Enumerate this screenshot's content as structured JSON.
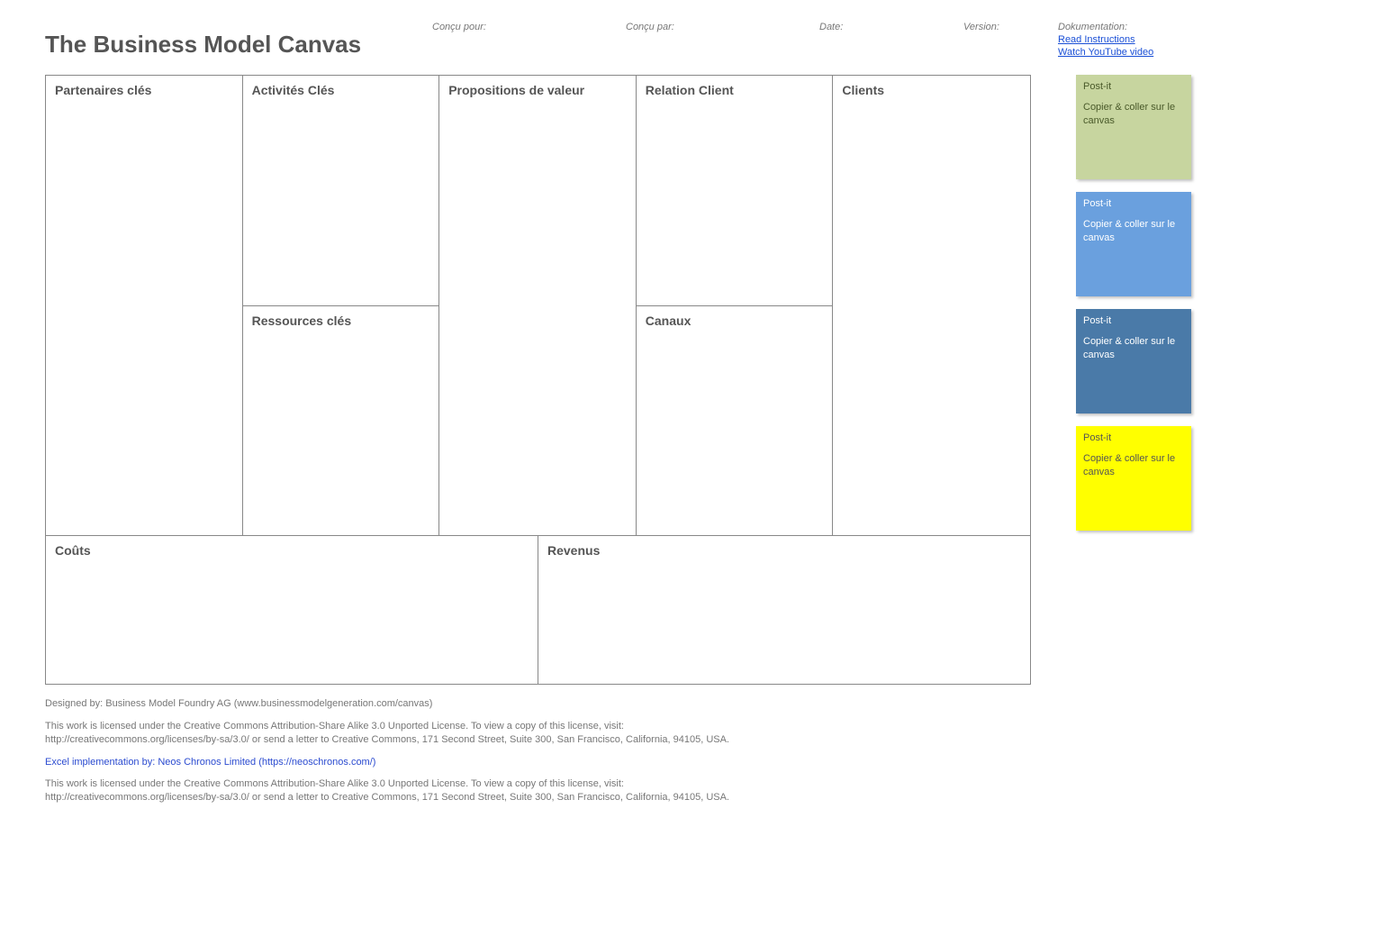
{
  "title": "The Business Model Canvas",
  "header": {
    "designed_for_label": "Conçu pour:",
    "designed_by_label": "Conçu par:",
    "date_label": "Date:",
    "version_label": "Version:",
    "documentation_label": "Dokumentation:",
    "read_instructions": "Read Instructions",
    "watch_video": "Watch YouTube video"
  },
  "canvas": {
    "border_color": "#888888",
    "heading_color": "#555555",
    "cells": {
      "key_partners": "Partenaires clés",
      "key_activities": "Activités Clés",
      "key_resources": "Ressources clés",
      "value_propositions": "Propositions de valeur",
      "customer_relationships": "Relation Client",
      "channels": "Canaux",
      "customer_segments": "Clients",
      "cost_structure": "Coûts",
      "revenue_streams": "Revenus"
    }
  },
  "postits": [
    {
      "title": "Post-it",
      "body": "Copier & coller sur le canvas",
      "bg_color": "#c7d59f",
      "title_color": "#4a5a2a",
      "body_color": "#4a5a2a"
    },
    {
      "title": "Post-it",
      "body": "Copier & coller sur le canvas",
      "bg_color": "#6aa0de",
      "title_color": "#ffffff",
      "body_color": "#ffffff"
    },
    {
      "title": "Post-it",
      "body": "Copier & coller sur le canvas",
      "bg_color": "#4a7aa8",
      "title_color": "#ffffff",
      "body_color": "#ffffff"
    },
    {
      "title": "Post-it",
      "body": "Copier & coller sur le canvas",
      "bg_color": "#ffff00",
      "title_color": "#555555",
      "body_color": "#555555"
    }
  ],
  "footer": {
    "designed_by": "Designed by: Business Model Foundry AG (www.businessmodelgeneration.com/canvas)",
    "license1": "This work is licensed under the Creative Commons Attribution-Share Alike 3.0 Unported License. To view a copy of this license, visit:\nhttp://creativecommons.org/licenses/by-sa/3.0/ or send a letter to Creative Commons, 171 Second Street, Suite 300, San Francisco, California, 94105, USA.",
    "excel_impl": "Excel implementation by: Neos Chronos Limited (https://neoschronos.com/)",
    "license2": "This work is licensed under the Creative Commons Attribution-Share Alike 3.0 Unported License. To view a copy of this license, visit:\nhttp://creativecommons.org/licenses/by-sa/3.0/ or send a letter to Creative Commons, 171 Second Street, Suite 300, San Francisco, California, 94105, USA."
  }
}
